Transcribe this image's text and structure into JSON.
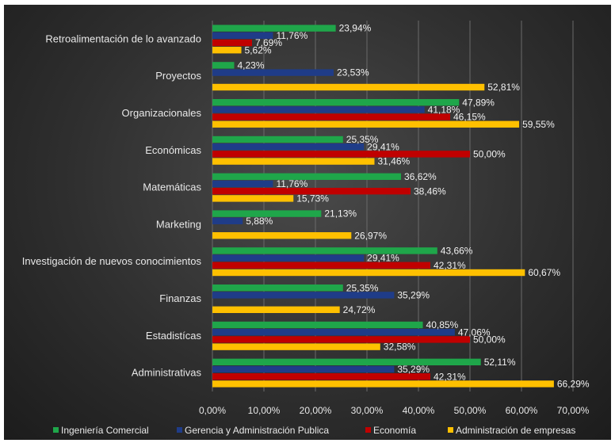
{
  "chart_data": {
    "type": "bar",
    "orientation": "horizontal",
    "categories": [
      "Retroalimentación de lo avanzado",
      "Proyectos",
      "Organizacionales",
      "Económicas",
      "Matemáticas",
      "Marketing",
      "Investigación de nuevos conocimientos",
      "Finanzas",
      "Estadistícas",
      "Administrativas"
    ],
    "series": [
      {
        "name": "Ingeniería Comercial",
        "color": "#1fa64a",
        "values": [
          23.94,
          4.23,
          47.89,
          25.35,
          36.62,
          21.13,
          43.66,
          25.35,
          40.85,
          52.11
        ],
        "labels": [
          "23,94%",
          "4,23%",
          "47,89%",
          "25,35%",
          "36,62%",
          "21,13%",
          "43,66%",
          "25,35%",
          "40,85%",
          "52,11%"
        ]
      },
      {
        "name": "Gerencia y Administración Publica",
        "color": "#1f3c88",
        "values": [
          11.76,
          23.53,
          41.18,
          29.41,
          11.76,
          5.88,
          29.41,
          35.29,
          47.06,
          35.29
        ],
        "labels": [
          "11,76%",
          "23,53%",
          "41,18%",
          "29,41%",
          "11,76%",
          "5,88%",
          "29,41%",
          "35,29%",
          "47,06%",
          "35,29%"
        ]
      },
      {
        "name": "Economía",
        "color": "#c00000",
        "values": [
          7.69,
          null,
          46.15,
          50.0,
          38.46,
          null,
          42.31,
          null,
          50.0,
          42.31
        ],
        "labels": [
          "7,69%",
          "",
          "46,15%",
          "50,00%",
          "38,46%",
          "",
          "42,31%",
          "",
          "50,00%",
          "42,31%"
        ]
      },
      {
        "name": "Administración de empresas",
        "color": "#ffc000",
        "values": [
          5.62,
          52.81,
          59.55,
          31.46,
          15.73,
          26.97,
          60.67,
          24.72,
          32.58,
          66.29
        ],
        "labels": [
          "5,62%",
          "52,81%",
          "59,55%",
          "31,46%",
          "15,73%",
          "26,97%",
          "60,67%",
          "24,72%",
          "32,58%",
          "66,29%"
        ]
      }
    ],
    "xlim": [
      0,
      70
    ],
    "xticks": [
      0,
      10,
      20,
      30,
      40,
      50,
      60,
      70
    ],
    "xtick_labels": [
      "0,00%",
      "10,00%",
      "20,00%",
      "30,00%",
      "40,00%",
      "50,00%",
      "60,00%",
      "70,00%"
    ],
    "grid": true,
    "legend": "bottom"
  }
}
